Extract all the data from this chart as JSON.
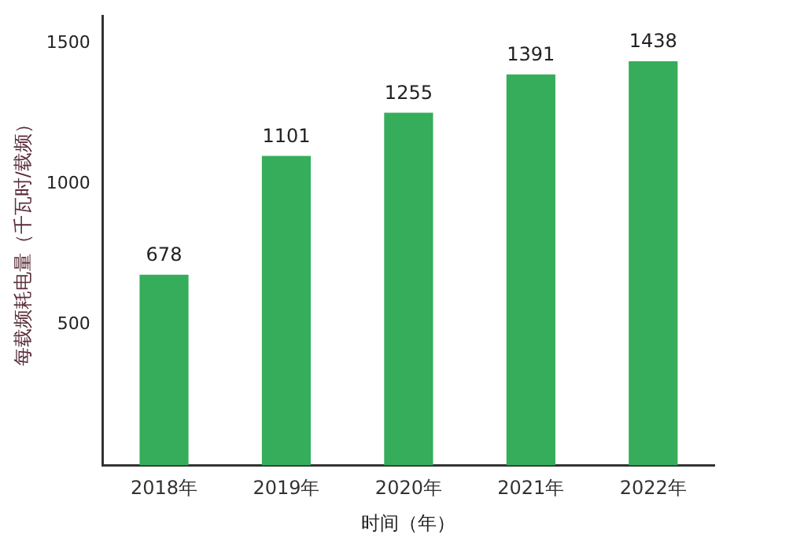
{
  "chart_data": {
    "type": "bar",
    "xlabel": "时间（年）",
    "ylabel": "每载频耗电量（千瓦时/载频）",
    "categories": [
      "2018年",
      "2019年",
      "2020年",
      "2021年",
      "2022年"
    ],
    "values": [
      678,
      1101,
      1255,
      1391,
      1438
    ],
    "color": "#35ad5a",
    "ylim": [
      0,
      1600
    ],
    "yticks": [
      500,
      1000,
      1500
    ],
    "grid": false,
    "legend": false,
    "data_labels": true
  }
}
